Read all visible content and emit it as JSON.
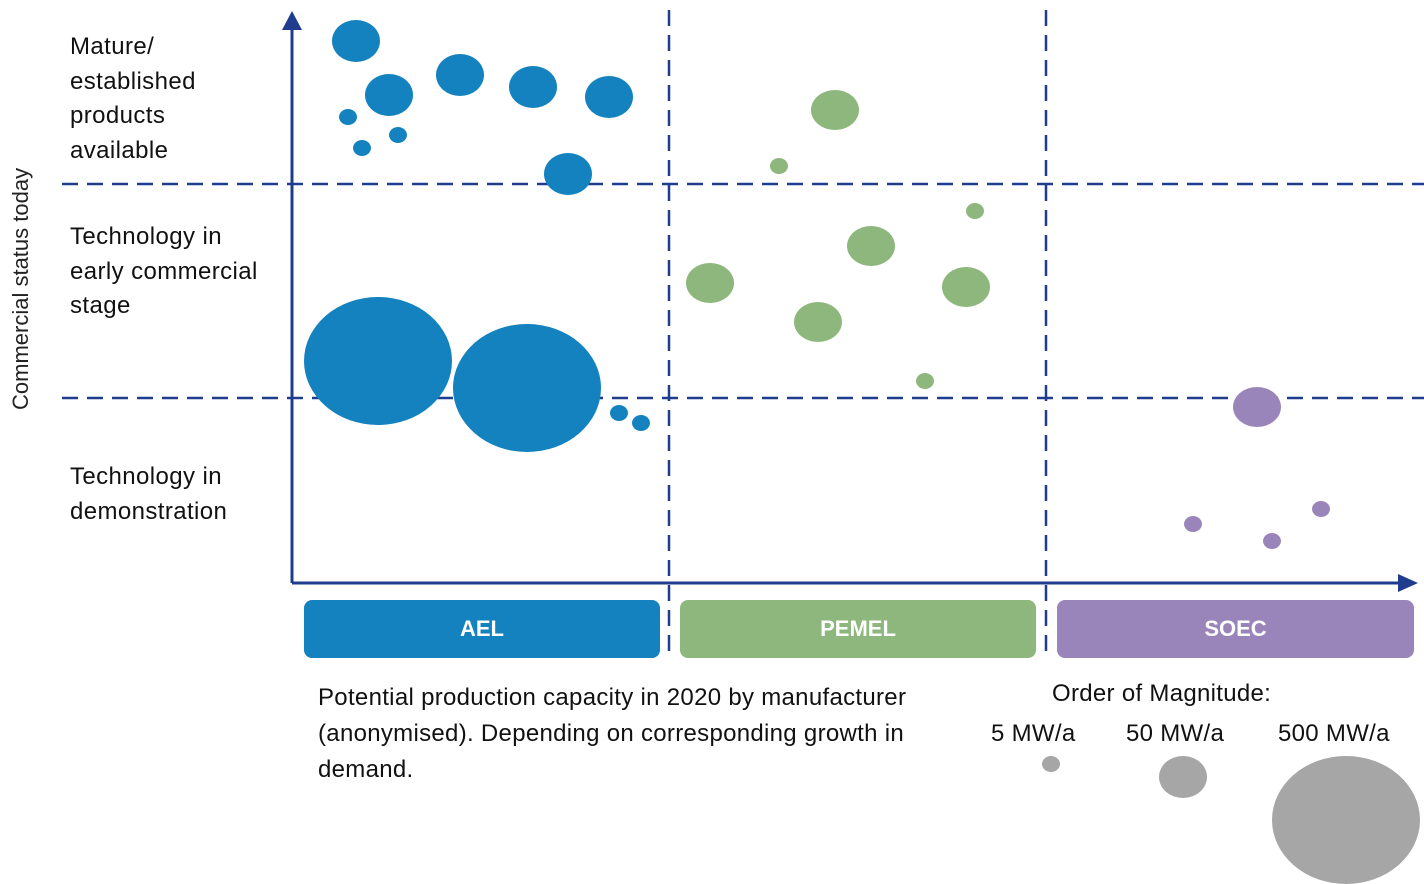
{
  "chart_data": {
    "type": "bubble-matrix",
    "y_axis_label": "Commercial status today",
    "status_levels": [
      "Mature/ established products available",
      "Technology in early commercial stage",
      "Technology in demonstration"
    ],
    "categories": [
      "AEL",
      "PEMEL",
      "SOEC"
    ],
    "colors": {
      "AEL": "#1382BF",
      "PEMEL": "#8DB77D",
      "SOEC": "#9A85BB",
      "reference": "#A6A6A6",
      "axis": "#1F3C8F"
    },
    "manufacturers": [
      {
        "category": "AEL",
        "status": "Mature/ established products available",
        "order": 1,
        "relative_size": 0.27
      },
      {
        "category": "AEL",
        "status": "Mature/ established products available",
        "order": 2,
        "relative_size": 0.27
      },
      {
        "category": "AEL",
        "status": "Mature/ established products available",
        "order": 3,
        "relative_size": 0.05
      },
      {
        "category": "AEL",
        "status": "Mature/ established products available",
        "order": 4,
        "relative_size": 0.05
      },
      {
        "category": "AEL",
        "status": "Mature/ established products available",
        "order": 5,
        "relative_size": 0.05
      },
      {
        "category": "AEL",
        "status": "Mature/ established products available",
        "order": 6,
        "relative_size": 0.27
      },
      {
        "category": "AEL",
        "status": "Mature/ established products available",
        "order": 7,
        "relative_size": 0.27
      },
      {
        "category": "AEL",
        "status": "Mature/ established products available",
        "order": 8,
        "relative_size": 0.27
      },
      {
        "category": "AEL",
        "status": "Mature/ established products available",
        "order": 9,
        "relative_size": 0.27
      },
      {
        "category": "AEL",
        "status": "Technology in early commercial stage",
        "order": 1,
        "relative_size": 2.7
      },
      {
        "category": "AEL",
        "status": "Technology in early commercial stage",
        "order": 2,
        "relative_size": 2.6
      },
      {
        "category": "AEL",
        "status": "Technology in demonstration",
        "order": 1,
        "relative_size": 0.04
      },
      {
        "category": "AEL",
        "status": "Technology in demonstration",
        "order": 2,
        "relative_size": 0.04
      },
      {
        "category": "PEMEL",
        "status": "Mature/ established products available",
        "order": 1,
        "relative_size": 0.26
      },
      {
        "category": "PEMEL",
        "status": "Mature/ established products available",
        "order": 2,
        "relative_size": 0.02
      },
      {
        "category": "PEMEL",
        "status": "Technology in early commercial stage",
        "order": 1,
        "relative_size": 0.02
      },
      {
        "category": "PEMEL",
        "status": "Technology in early commercial stage",
        "order": 2,
        "relative_size": 0.26
      },
      {
        "category": "PEMEL",
        "status": "Technology in early commercial stage",
        "order": 3,
        "relative_size": 0.26
      },
      {
        "category": "PEMEL",
        "status": "Technology in early commercial stage",
        "order": 4,
        "relative_size": 0.26
      },
      {
        "category": "PEMEL",
        "status": "Technology in early commercial stage",
        "order": 5,
        "relative_size": 0.26
      },
      {
        "category": "PEMEL",
        "status": "Technology in early commercial stage",
        "order": 6,
        "relative_size": 0.02
      },
      {
        "category": "SOEC",
        "status": "Technology in demonstration",
        "order": 1,
        "relative_size": 0.24
      },
      {
        "category": "SOEC",
        "status": "Technology in demonstration",
        "order": 2,
        "relative_size": 0.02
      },
      {
        "category": "SOEC",
        "status": "Technology in demonstration",
        "order": 3,
        "relative_size": 0.02
      },
      {
        "category": "SOEC",
        "status": "Technology in demonstration",
        "order": 4,
        "relative_size": 0.02
      }
    ],
    "note": "Potential production capacity in 2020 by manufacturer (anonymised). Depending on corresponding growth in demand.",
    "size_legend": {
      "title": "Order of Magnitude:",
      "items": [
        {
          "label": "5 MW/a",
          "value_mw": 5
        },
        {
          "label": "50 MW/a",
          "value_mw": 50
        },
        {
          "label": "500 MW/a",
          "value_mw": 500
        }
      ]
    }
  }
}
